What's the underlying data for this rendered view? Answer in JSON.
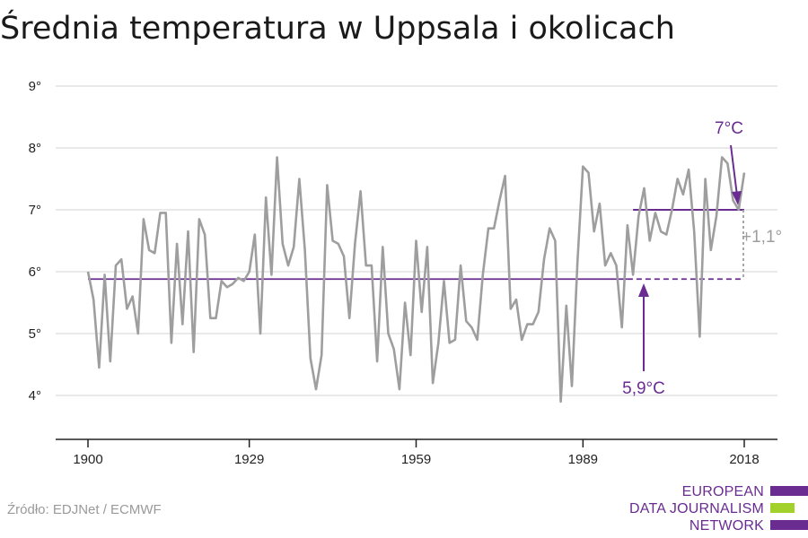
{
  "title": "Średnia temperatura w Uppsala i okolicach",
  "source": "Źródło: EDJNet / ECMWF",
  "logo": {
    "lines": [
      "EUROPEAN",
      "DATA JOURNALISM",
      "NETWORK"
    ],
    "colors": {
      "purple": "#6a2c91",
      "green": "#a3d12b"
    }
  },
  "annotations": {
    "recent_avg": "7°C",
    "baseline_avg": "5,9°C",
    "difference": "+1,1°"
  },
  "colors": {
    "series": "#9e9e9e",
    "accent": "#6a2c91",
    "grid": "#dcdcdc",
    "diff": "#9e9e9e"
  },
  "chart_data": {
    "type": "line",
    "title": "Średnia temperatura w Uppsala i okolicach",
    "xlabel": "",
    "ylabel": "",
    "xlim": [
      1900,
      2018
    ],
    "ylim": [
      3.5,
      9
    ],
    "x_ticks": [
      1900,
      1929,
      1959,
      1989,
      2018
    ],
    "x_tick_labels": [
      "1900",
      "1929",
      "1959",
      "1989",
      "2018"
    ],
    "y_ticks": [
      4,
      5,
      6,
      7,
      8,
      9
    ],
    "y_tick_labels": [
      "4°",
      "5°",
      "6°",
      "7°",
      "8°",
      "9°"
    ],
    "grid": true,
    "series": [
      {
        "x": [
          1900,
          1901,
          1902,
          1903,
          1904,
          1905,
          1906,
          1907,
          1908,
          1909,
          1910,
          1911,
          1912,
          1913,
          1914,
          1915,
          1916,
          1917,
          1918,
          1919,
          1920,
          1921,
          1922,
          1923,
          1924,
          1925,
          1926,
          1927,
          1928,
          1929,
          1930,
          1931,
          1932,
          1933,
          1934,
          1935,
          1936,
          1937,
          1938,
          1939,
          1940,
          1941,
          1942,
          1943,
          1944,
          1945,
          1946,
          1947,
          1948,
          1949,
          1950,
          1951,
          1952,
          1953,
          1954,
          1955,
          1956,
          1957,
          1958,
          1959,
          1960,
          1961,
          1962,
          1963,
          1964,
          1965,
          1966,
          1967,
          1968,
          1969,
          1970,
          1971,
          1972,
          1973,
          1974,
          1975,
          1976,
          1977,
          1978,
          1979,
          1980,
          1981,
          1982,
          1983,
          1984,
          1985,
          1986,
          1987,
          1988,
          1989,
          1990,
          1991,
          1992,
          1993,
          1994,
          1995,
          1996,
          1997,
          1998,
          1999,
          2000,
          2001,
          2002,
          2003,
          2004,
          2005,
          2006,
          2007,
          2008,
          2009,
          2010,
          2011,
          2012,
          2013,
          2014,
          2015,
          2016,
          2017,
          2018
        ],
        "values": [
          6.0,
          5.55,
          4.45,
          5.95,
          4.55,
          6.1,
          6.2,
          5.4,
          5.6,
          5.0,
          6.85,
          6.35,
          6.3,
          6.95,
          6.95,
          4.85,
          6.45,
          5.15,
          6.65,
          4.7,
          6.85,
          6.6,
          5.25,
          5.25,
          5.85,
          5.75,
          5.8,
          5.9,
          5.85,
          6.0,
          6.6,
          5.0,
          7.2,
          5.95,
          7.85,
          6.45,
          6.1,
          6.4,
          7.5,
          6.35,
          4.6,
          4.1,
          4.65,
          7.4,
          6.5,
          6.45,
          6.25,
          5.25,
          6.45,
          7.3,
          6.1,
          6.1,
          4.55,
          6.4,
          5.0,
          4.75,
          4.1,
          5.5,
          4.65,
          6.5,
          5.35,
          6.4,
          4.2,
          4.85,
          5.85,
          4.85,
          4.9,
          6.1,
          5.2,
          5.1,
          4.9,
          5.95,
          6.7,
          6.7,
          7.15,
          7.55,
          5.4,
          5.55,
          4.9,
          5.15,
          5.15,
          5.35,
          6.2,
          6.7,
          6.5,
          3.9,
          5.45,
          4.15,
          6.15,
          7.7,
          7.6,
          6.65,
          7.1,
          6.1,
          6.3,
          6.1,
          5.1,
          6.75,
          5.95,
          6.9,
          7.35,
          6.5,
          6.95,
          6.65,
          6.6,
          7.0,
          7.5,
          7.25,
          7.65,
          6.65,
          4.95,
          7.5,
          6.35,
          6.9,
          7.85,
          7.75,
          7.15,
          7.0,
          7.6
        ]
      }
    ],
    "reference_lines": [
      {
        "label": "5,9°C",
        "y": 5.88,
        "x_start": 1900,
        "x_end": 2018,
        "solid_until": 1997
      },
      {
        "label": "7°C",
        "y": 7.0,
        "x_start": 1998,
        "x_end": 2018
      }
    ]
  }
}
